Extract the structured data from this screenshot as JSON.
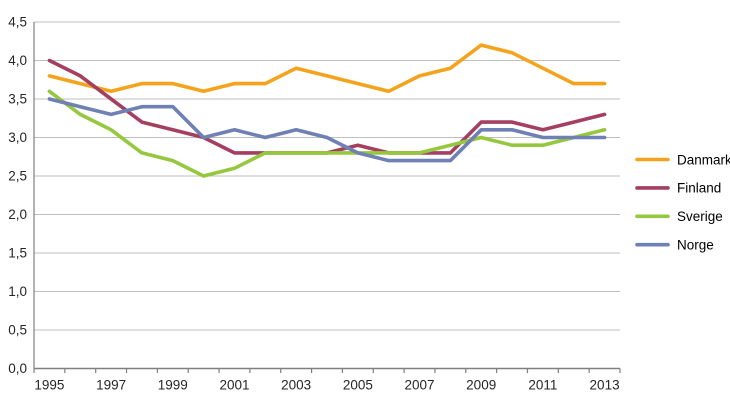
{
  "chart_data": {
    "type": "line",
    "title": "",
    "x": [
      1995,
      1996,
      1997,
      1998,
      1999,
      2000,
      2001,
      2002,
      2003,
      2004,
      2005,
      2006,
      2007,
      2008,
      2009,
      2010,
      2011,
      2012,
      2013
    ],
    "x_tick_labels": [
      "1995",
      "1997",
      "1999",
      "2001",
      "2003",
      "2005",
      "2007",
      "2009",
      "2011",
      "2013"
    ],
    "x_labeled_indices": [
      0,
      2,
      4,
      6,
      8,
      10,
      12,
      14,
      16,
      18
    ],
    "y_tick_labels_top_to_bottom": [
      "4,5",
      "4,0",
      "3,5",
      "3,0",
      "2,5",
      "2,0",
      "1,5",
      "1,0",
      "0,5",
      "0,0"
    ],
    "ylim": [
      0,
      4.5
    ],
    "y_step": 0.5,
    "grid": true,
    "legend_position": "right",
    "series": [
      {
        "name": "Danmark",
        "color": "#F5A31D",
        "values": [
          3.8,
          3.7,
          3.6,
          3.7,
          3.7,
          3.6,
          3.7,
          3.7,
          3.9,
          3.8,
          3.7,
          3.6,
          3.8,
          3.9,
          4.2,
          4.1,
          3.9,
          3.7,
          3.7
        ]
      },
      {
        "name": "Finland",
        "color": "#A43F60",
        "values": [
          4.0,
          3.8,
          3.5,
          3.2,
          3.1,
          3.0,
          2.8,
          2.8,
          2.8,
          2.8,
          2.9,
          2.8,
          2.8,
          2.8,
          3.2,
          3.2,
          3.1,
          3.2,
          3.3
        ]
      },
      {
        "name": "Sverige",
        "color": "#95C83E",
        "values": [
          3.6,
          3.3,
          3.1,
          2.8,
          2.7,
          2.5,
          2.6,
          2.8,
          2.8,
          2.8,
          2.8,
          2.8,
          2.8,
          2.9,
          3.0,
          2.9,
          2.9,
          3.0,
          3.1
        ]
      },
      {
        "name": "Norge",
        "color": "#6F80B4",
        "values": [
          3.5,
          3.4,
          3.3,
          3.4,
          3.4,
          3.0,
          3.1,
          3.0,
          3.1,
          3.0,
          2.8,
          2.7,
          2.7,
          2.7,
          3.1,
          3.1,
          3.0,
          3.0,
          3.0
        ]
      }
    ],
    "colors": {
      "background": "#FFFFFF",
      "gridline": "#BFBFBF",
      "axis_line": "#7F7F7F",
      "tick_mark": "#7F7F7F",
      "axis_label_text": "#262626",
      "legend_text": "#000000"
    }
  }
}
